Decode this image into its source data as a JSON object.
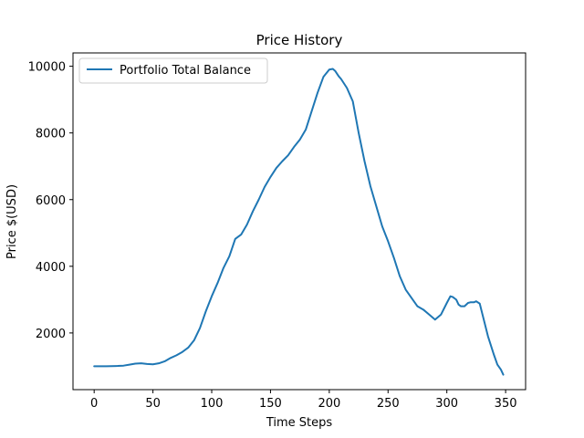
{
  "chart_data": {
    "type": "line",
    "title": "Price History",
    "xlabel": "Time Steps",
    "ylabel": "Price $(USD)",
    "xlim": [
      -18,
      367
    ],
    "ylim": [
      300,
      10400
    ],
    "xticks": [
      0,
      50,
      100,
      150,
      200,
      250,
      300,
      350
    ],
    "yticks": [
      2000,
      4000,
      6000,
      8000,
      10000
    ],
    "grid": false,
    "legend_position": "top-left",
    "series": [
      {
        "name": "Portfolio Total Balance",
        "color": "#1f77b4",
        "points": [
          [
            0,
            1000
          ],
          [
            10,
            1000
          ],
          [
            20,
            1010
          ],
          [
            25,
            1020
          ],
          [
            30,
            1050
          ],
          [
            35,
            1080
          ],
          [
            40,
            1090
          ],
          [
            45,
            1070
          ],
          [
            50,
            1060
          ],
          [
            55,
            1090
          ],
          [
            60,
            1150
          ],
          [
            65,
            1250
          ],
          [
            70,
            1330
          ],
          [
            75,
            1430
          ],
          [
            80,
            1560
          ],
          [
            85,
            1780
          ],
          [
            90,
            2150
          ],
          [
            95,
            2650
          ],
          [
            100,
            3100
          ],
          [
            105,
            3500
          ],
          [
            110,
            3950
          ],
          [
            115,
            4300
          ],
          [
            120,
            4820
          ],
          [
            125,
            4950
          ],
          [
            130,
            5250
          ],
          [
            135,
            5650
          ],
          [
            140,
            6000
          ],
          [
            145,
            6380
          ],
          [
            150,
            6680
          ],
          [
            155,
            6950
          ],
          [
            160,
            7150
          ],
          [
            165,
            7330
          ],
          [
            170,
            7580
          ],
          [
            175,
            7800
          ],
          [
            180,
            8100
          ],
          [
            185,
            8650
          ],
          [
            190,
            9200
          ],
          [
            195,
            9680
          ],
          [
            200,
            9900
          ],
          [
            203,
            9920
          ],
          [
            205,
            9860
          ],
          [
            208,
            9700
          ],
          [
            210,
            9620
          ],
          [
            215,
            9350
          ],
          [
            220,
            8950
          ],
          [
            225,
            8000
          ],
          [
            230,
            7150
          ],
          [
            235,
            6400
          ],
          [
            240,
            5800
          ],
          [
            245,
            5200
          ],
          [
            250,
            4750
          ],
          [
            255,
            4250
          ],
          [
            260,
            3700
          ],
          [
            265,
            3300
          ],
          [
            270,
            3050
          ],
          [
            275,
            2800
          ],
          [
            280,
            2700
          ],
          [
            285,
            2550
          ],
          [
            290,
            2400
          ],
          [
            295,
            2550
          ],
          [
            300,
            2900
          ],
          [
            303,
            3100
          ],
          [
            305,
            3080
          ],
          [
            308,
            3000
          ],
          [
            310,
            2850
          ],
          [
            312,
            2800
          ],
          [
            315,
            2800
          ],
          [
            318,
            2900
          ],
          [
            320,
            2920
          ],
          [
            323,
            2920
          ],
          [
            325,
            2950
          ],
          [
            328,
            2880
          ],
          [
            330,
            2600
          ],
          [
            335,
            1900
          ],
          [
            340,
            1350
          ],
          [
            343,
            1050
          ],
          [
            346,
            900
          ],
          [
            348,
            750
          ]
        ]
      }
    ]
  }
}
